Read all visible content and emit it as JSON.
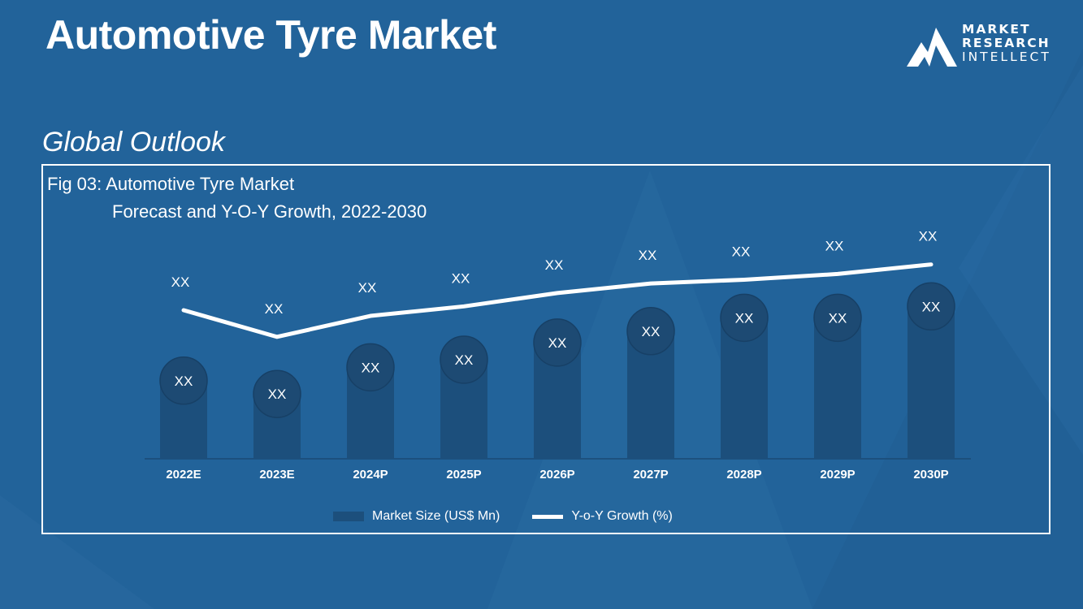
{
  "page": {
    "title": "Automotive Tyre Market",
    "subtitle": "Global Outlook"
  },
  "logo": {
    "line1": "MARKET",
    "line2": "RESEARCH",
    "line3": "INTELLECT"
  },
  "colors": {
    "background": "#22639a",
    "bar": "#1c4f7c",
    "bubble": "#1d4a73",
    "line": "#ffffff"
  },
  "chart_data": {
    "type": "bar",
    "title_line1": "Fig 03: Automotive Tyre Market",
    "title_line2": "Forecast and Y-O-Y Growth, 2022-2030",
    "categories": [
      "2022E",
      "2023E",
      "2024P",
      "2025P",
      "2026P",
      "2027P",
      "2028P",
      "2029P",
      "2030P"
    ],
    "series": [
      {
        "name": "Market Size (US$ Mn)",
        "type": "bar",
        "values": [
          41,
          34,
          48,
          52,
          61,
          67,
          74,
          74,
          80
        ],
        "labels": [
          "XX",
          "XX",
          "XX",
          "XX",
          "XX",
          "XX",
          "XX",
          "XX",
          "XX"
        ]
      },
      {
        "name": "Y-o-Y Growth (%)",
        "type": "line",
        "values": [
          78,
          64,
          75,
          80,
          87,
          92,
          94,
          97,
          102
        ],
        "labels": [
          "XX",
          "XX",
          "XX",
          "XX",
          "XX",
          "XX",
          "XX",
          "XX",
          "XX"
        ]
      }
    ],
    "ylim": [
      0,
      130
    ],
    "grid": false,
    "legend_position": "bottom"
  }
}
